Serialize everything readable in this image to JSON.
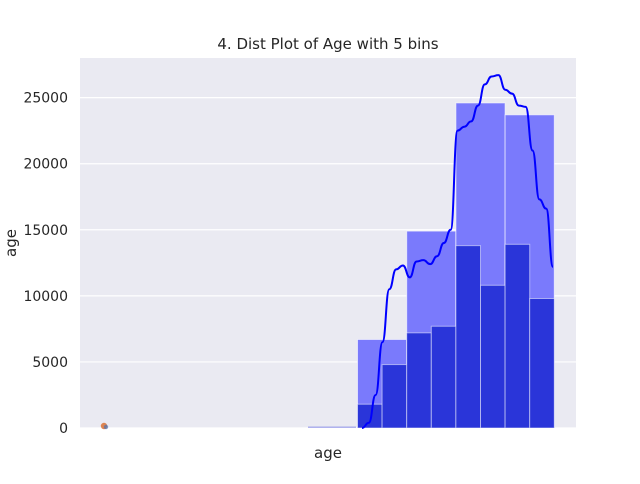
{
  "chart_data": {
    "type": "bar",
    "title": "4. Dist Plot of Age with 5 bins",
    "xlabel": "age",
    "ylabel": "age",
    "ylim": [
      0,
      28000
    ],
    "y_ticks": [
      0,
      5000,
      10000,
      15000,
      20000,
      25000
    ],
    "y_tick_labels": [
      "0",
      "5000",
      "10000",
      "15000",
      "20000",
      "25000"
    ],
    "grid": true,
    "legend": "none",
    "colors": {
      "background": "#eaeaf2",
      "grid": "#ffffff",
      "wide_bins": "#7a7afc",
      "narrow_bins": "#2a35d9",
      "kde": "#0000ff",
      "outlier_marker": "#dd8452"
    },
    "wide_bins": [
      {
        "value": 6700
      },
      {
        "value": 14900
      },
      {
        "value": 24600
      },
      {
        "value": 23700
      }
    ],
    "narrow_bins": [
      {
        "value": 1800
      },
      {
        "value": 4800
      },
      {
        "value": 7200
      },
      {
        "value": 7700
      },
      {
        "value": 13800
      },
      {
        "value": 10800
      },
      {
        "value": 13900
      },
      {
        "value": 9800
      }
    ],
    "kde": [
      0,
      400,
      2500,
      6500,
      10500,
      12000,
      12300,
      11400,
      12600,
      12700,
      12400,
      13000,
      14000,
      15000,
      22500,
      22800,
      23200,
      24400,
      26000,
      26600,
      26700,
      25600,
      25300,
      24400,
      24300,
      21000,
      17300,
      16600,
      12200
    ]
  }
}
